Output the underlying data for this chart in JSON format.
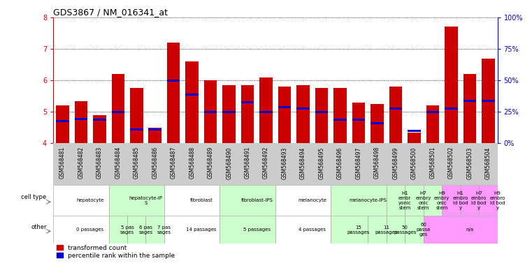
{
  "title": "GDS3867 / NM_016341_at",
  "samples": [
    "GSM568481",
    "GSM568482",
    "GSM568483",
    "GSM568484",
    "GSM568485",
    "GSM568486",
    "GSM568487",
    "GSM568488",
    "GSM568489",
    "GSM568490",
    "GSM568491",
    "GSM568492",
    "GSM568493",
    "GSM568494",
    "GSM568495",
    "GSM568496",
    "GSM568497",
    "GSM568498",
    "GSM568499",
    "GSM568500",
    "GSM568501",
    "GSM568502",
    "GSM568503",
    "GSM568504"
  ],
  "red_values": [
    5.2,
    5.35,
    4.9,
    6.2,
    5.75,
    4.5,
    7.2,
    6.6,
    6.0,
    5.85,
    5.85,
    6.1,
    5.8,
    5.85,
    5.75,
    5.75,
    5.3,
    5.25,
    5.8,
    4.35,
    5.2,
    7.7,
    6.2,
    6.7
  ],
  "blue_values": [
    4.7,
    4.78,
    4.75,
    5.0,
    4.45,
    4.45,
    6.0,
    5.55,
    5.0,
    5.0,
    5.3,
    5.0,
    5.15,
    5.1,
    5.0,
    4.75,
    4.75,
    4.65,
    5.1,
    4.4,
    5.0,
    5.1,
    5.35,
    5.35
  ],
  "ylim": [
    4,
    8
  ],
  "yticks_left": [
    4,
    5,
    6,
    7,
    8
  ],
  "cell_type_groups": [
    {
      "label": "hepatocyte",
      "start": 0,
      "end": 3,
      "color": "#ffffff"
    },
    {
      "label": "hepatocyte-iP\nS",
      "start": 3,
      "end": 6,
      "color": "#ccffcc"
    },
    {
      "label": "fibroblast",
      "start": 6,
      "end": 9,
      "color": "#ffffff"
    },
    {
      "label": "fibroblast-IPS",
      "start": 9,
      "end": 12,
      "color": "#ccffcc"
    },
    {
      "label": "melanocyte",
      "start": 12,
      "end": 15,
      "color": "#ffffff"
    },
    {
      "label": "melanocyte-IPS",
      "start": 15,
      "end": 18,
      "color": "#ccffcc"
    },
    {
      "label": "H1\nembr\nyonic\nstem",
      "start": 18,
      "end": 19,
      "color": "#ccffcc"
    },
    {
      "label": "H7\nembry\nonic\nstem",
      "start": 19,
      "end": 20,
      "color": "#ccffcc"
    },
    {
      "label": "H9\nembry\nonic\nstem",
      "start": 20,
      "end": 21,
      "color": "#ccffcc"
    },
    {
      "label": "H1\nembro\nid bod\ny",
      "start": 21,
      "end": 22,
      "color": "#ff99ff"
    },
    {
      "label": "H7\nembro\nid bod\ny",
      "start": 22,
      "end": 23,
      "color": "#ff99ff"
    },
    {
      "label": "H9\nembro\nid bod\ny",
      "start": 23,
      "end": 24,
      "color": "#ff99ff"
    }
  ],
  "other_groups": [
    {
      "label": "0 passages",
      "start": 0,
      "end": 3,
      "color": "#ffffff"
    },
    {
      "label": "5 pas\nsages",
      "start": 3,
      "end": 4,
      "color": "#ccffcc"
    },
    {
      "label": "6 pas\nsages",
      "start": 4,
      "end": 5,
      "color": "#ccffcc"
    },
    {
      "label": "7 pas\nsages",
      "start": 5,
      "end": 6,
      "color": "#ccffcc"
    },
    {
      "label": "14 passages",
      "start": 6,
      "end": 9,
      "color": "#ffffff"
    },
    {
      "label": "5 passages",
      "start": 9,
      "end": 12,
      "color": "#ccffcc"
    },
    {
      "label": "4 passages",
      "start": 12,
      "end": 15,
      "color": "#ffffff"
    },
    {
      "label": "15\npassages",
      "start": 15,
      "end": 17,
      "color": "#ccffcc"
    },
    {
      "label": "11\npassages",
      "start": 17,
      "end": 18,
      "color": "#ccffcc"
    },
    {
      "label": "50\npassages",
      "start": 18,
      "end": 19,
      "color": "#ccffcc"
    },
    {
      "label": "60\npassa\nges",
      "start": 19,
      "end": 20,
      "color": "#ccffcc"
    },
    {
      "label": "n/a",
      "start": 20,
      "end": 24,
      "color": "#ff99ff"
    }
  ],
  "bar_color": "#cc0000",
  "blue_color": "#0000cc",
  "bg_color": "#ffffff",
  "right_axis_color": "#0000cc",
  "left_axis_color": "#cc0000",
  "legend_red": "transformed count",
  "legend_blue": "percentile rank within the sample",
  "xtick_bg": "#cccccc"
}
